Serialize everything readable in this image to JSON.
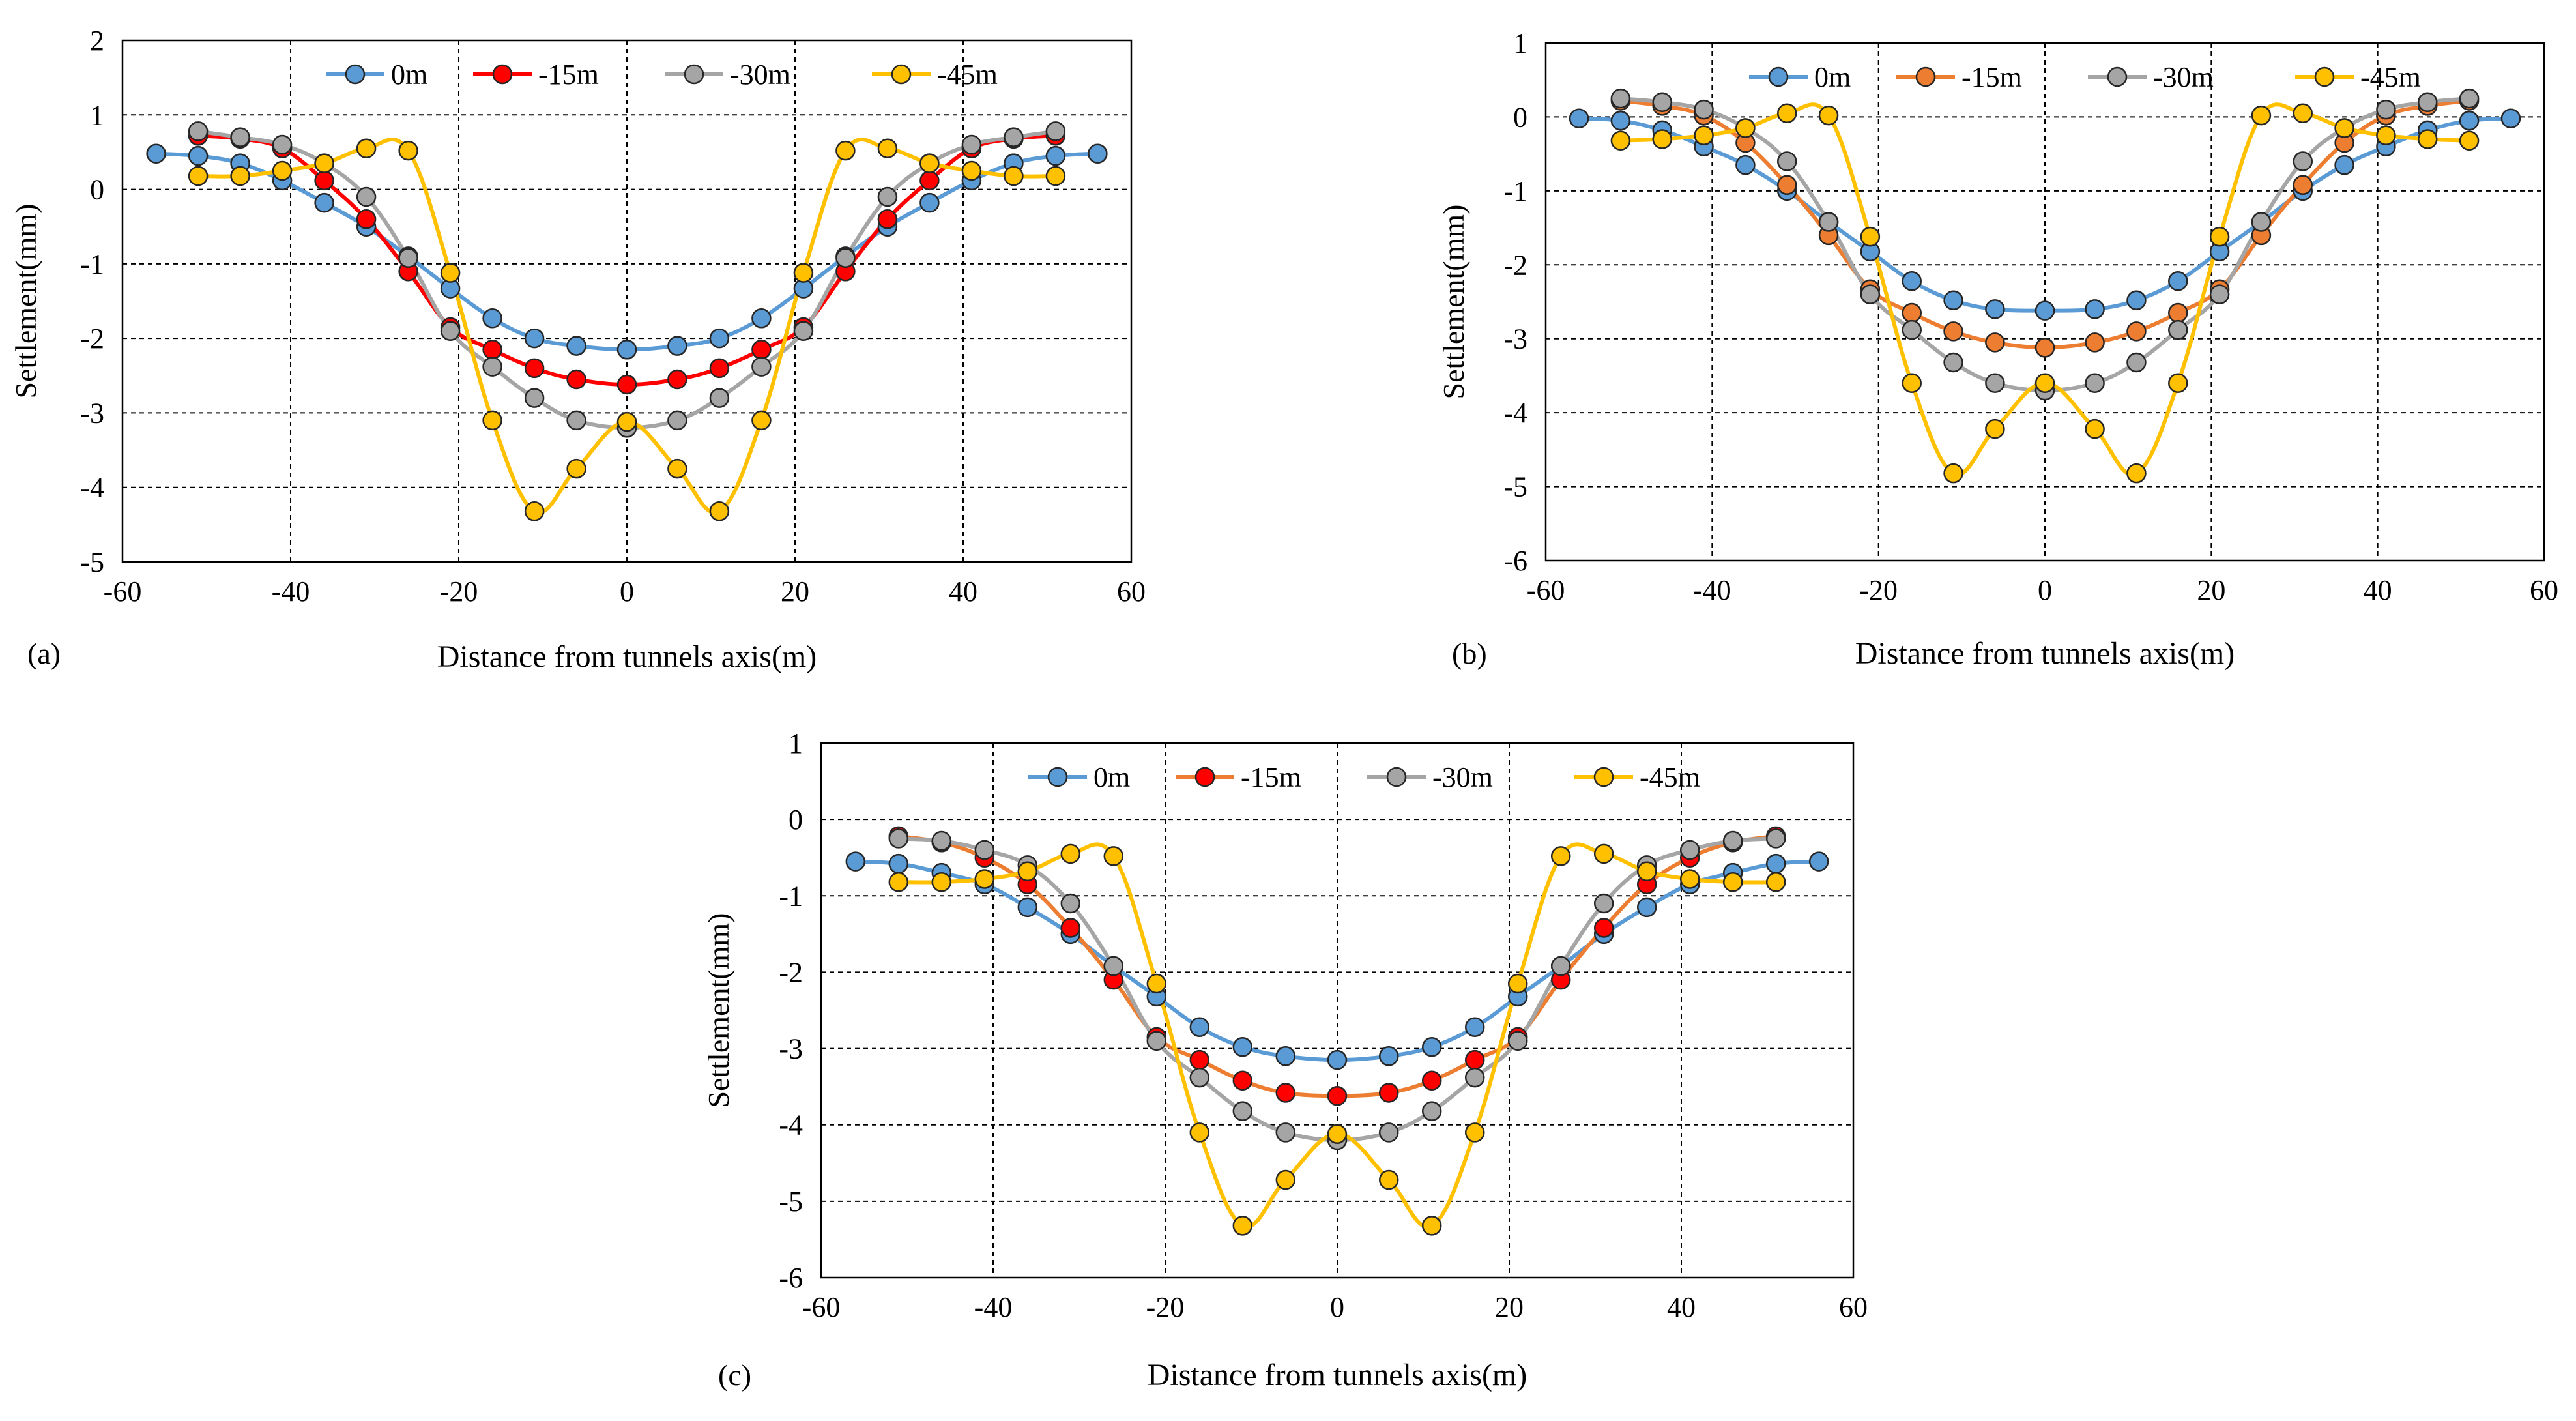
{
  "figure": {
    "xlabel": "Distance from tunnels axis(m)",
    "ylabel": "Settlement(mm)",
    "legend": [
      "0m",
      "-15m",
      "-30m",
      "-45m"
    ]
  },
  "chart_data": [
    {
      "type": "line",
      "panel_label": "(a)",
      "xlabel": "Distance from tunnels axis(m)",
      "ylabel": "Settlement(mm)",
      "xlim": [
        -60,
        60
      ],
      "ylim": [
        -5,
        2
      ],
      "xticks": [
        -60,
        -40,
        -20,
        0,
        20,
        40,
        60
      ],
      "yticks": [
        -5,
        -4,
        -3,
        -2,
        -1,
        0,
        1,
        2
      ],
      "grid": true,
      "legend_position": "top-center",
      "series": [
        {
          "name": "0m",
          "color": "#5B9BD5",
          "line_color": "#5B9BD5",
          "x": [
            -56,
            -51,
            -46,
            -41,
            -36,
            -31,
            -26,
            -21,
            -16,
            -11,
            -6,
            0,
            6,
            11,
            16,
            21,
            26,
            31,
            36,
            41,
            46,
            51,
            56
          ],
          "y": [
            0.48,
            0.45,
            0.35,
            0.12,
            -0.18,
            -0.5,
            -0.9,
            -1.33,
            -1.73,
            -2.0,
            -2.1,
            -2.15,
            -2.1,
            -2.0,
            -1.73,
            -1.33,
            -0.9,
            -0.5,
            -0.18,
            0.12,
            0.35,
            0.45,
            0.48
          ]
        },
        {
          "name": "-15m",
          "color": "#FF0000",
          "line_color": "#FF0000",
          "x": [
            -51,
            -46,
            -41,
            -36,
            -31,
            -26,
            -21,
            -16,
            -11,
            -6,
            0,
            6,
            11,
            16,
            21,
            26,
            31,
            36,
            41,
            46,
            51
          ],
          "y": [
            0.72,
            0.68,
            0.55,
            0.12,
            -0.4,
            -1.1,
            -1.85,
            -2.15,
            -2.4,
            -2.55,
            -2.62,
            -2.55,
            -2.4,
            -2.15,
            -1.85,
            -1.1,
            -0.4,
            0.12,
            0.55,
            0.68,
            0.72
          ]
        },
        {
          "name": "-30m",
          "color": "#A5A5A5",
          "line_color": "#A5A5A5",
          "x": [
            -51,
            -46,
            -41,
            -36,
            -31,
            -26,
            -21,
            -16,
            -11,
            -6,
            0,
            6,
            11,
            16,
            21,
            26,
            31,
            36,
            41,
            46,
            51
          ],
          "y": [
            0.78,
            0.7,
            0.6,
            0.35,
            -0.1,
            -0.92,
            -1.9,
            -2.38,
            -2.8,
            -3.1,
            -3.2,
            -3.1,
            -2.8,
            -2.38,
            -1.9,
            -0.92,
            -0.1,
            0.35,
            0.6,
            0.7,
            0.78
          ]
        },
        {
          "name": "-45m",
          "color": "#FFC000",
          "line_color": "#FFC000",
          "x": [
            -51,
            -46,
            -41,
            -36,
            -31,
            -26,
            -21,
            -16,
            -11,
            -6,
            0,
            6,
            11,
            16,
            21,
            26,
            31,
            36,
            41,
            46,
            51
          ],
          "y": [
            0.18,
            0.18,
            0.25,
            0.35,
            0.55,
            0.52,
            -1.12,
            -3.1,
            -4.32,
            -3.75,
            -3.12,
            -3.75,
            -4.32,
            -3.1,
            -1.12,
            0.52,
            0.55,
            0.35,
            0.25,
            0.18,
            0.18
          ]
        }
      ]
    },
    {
      "type": "line",
      "panel_label": "(b)",
      "xlabel": "Distance from tunnels axis(m)",
      "ylabel": "Settlement(mm)",
      "xlim": [
        -60,
        60
      ],
      "ylim": [
        -6,
        1
      ],
      "xticks": [
        -60,
        -40,
        -20,
        0,
        20,
        40,
        60
      ],
      "yticks": [
        -6,
        -5,
        -4,
        -3,
        -2,
        -1,
        0,
        1
      ],
      "grid": true,
      "legend_position": "top-center",
      "series": [
        {
          "name": "0m",
          "color": "#5B9BD5",
          "line_color": "#5B9BD5",
          "x": [
            -56,
            -51,
            -46,
            -41,
            -36,
            -31,
            -26,
            -21,
            -16,
            -11,
            -6,
            0,
            6,
            11,
            16,
            21,
            26,
            31,
            36,
            41,
            46,
            51,
            56
          ],
          "y": [
            -0.02,
            -0.05,
            -0.18,
            -0.4,
            -0.65,
            -1.0,
            -1.42,
            -1.82,
            -2.22,
            -2.48,
            -2.6,
            -2.62,
            -2.6,
            -2.48,
            -2.22,
            -1.82,
            -1.42,
            -1.0,
            -0.65,
            -0.4,
            -0.18,
            -0.05,
            -0.02
          ]
        },
        {
          "name": "-15m",
          "color": "#ED7D31",
          "line_color": "#ED7D31",
          "x": [
            -51,
            -46,
            -41,
            -36,
            -31,
            -26,
            -21,
            -16,
            -11,
            -6,
            0,
            6,
            11,
            16,
            21,
            26,
            31,
            36,
            41,
            46,
            51
          ],
          "y": [
            0.22,
            0.15,
            0.02,
            -0.35,
            -0.92,
            -1.6,
            -2.33,
            -2.65,
            -2.9,
            -3.05,
            -3.12,
            -3.05,
            -2.9,
            -2.65,
            -2.33,
            -1.6,
            -0.92,
            -0.35,
            0.02,
            0.15,
            0.22
          ]
        },
        {
          "name": "-30m",
          "color": "#A5A5A5",
          "line_color": "#A5A5A5",
          "x": [
            -51,
            -46,
            -41,
            -36,
            -31,
            -26,
            -21,
            -16,
            -11,
            -6,
            0,
            6,
            11,
            16,
            21,
            26,
            31,
            36,
            41,
            46,
            51
          ],
          "y": [
            0.25,
            0.2,
            0.1,
            -0.15,
            -0.6,
            -1.42,
            -2.4,
            -2.88,
            -3.32,
            -3.6,
            -3.7,
            -3.6,
            -3.32,
            -2.88,
            -2.4,
            -1.42,
            -0.6,
            -0.15,
            0.1,
            0.2,
            0.25
          ]
        },
        {
          "name": "-45m",
          "color": "#FFC000",
          "line_color": "#FFC000",
          "x": [
            -51,
            -46,
            -41,
            -36,
            -31,
            -26,
            -21,
            -16,
            -11,
            -6,
            0,
            6,
            11,
            16,
            21,
            26,
            31,
            36,
            41,
            46,
            51
          ],
          "y": [
            -0.32,
            -0.3,
            -0.25,
            -0.15,
            0.05,
            0.02,
            -1.62,
            -3.6,
            -4.82,
            -4.22,
            -3.6,
            -4.22,
            -4.82,
            -3.6,
            -1.62,
            0.02,
            0.05,
            -0.15,
            -0.25,
            -0.3,
            -0.32
          ]
        }
      ]
    },
    {
      "type": "line",
      "panel_label": "(c)",
      "xlabel": "Distance from tunnels axis(m)",
      "ylabel": "Settlement(mm)",
      "xlim": [
        -60,
        60
      ],
      "ylim": [
        -6,
        1
      ],
      "xticks": [
        -60,
        -40,
        -20,
        0,
        20,
        40,
        60
      ],
      "yticks": [
        -6,
        -5,
        -4,
        -3,
        -2,
        -1,
        0,
        1
      ],
      "grid": true,
      "legend_position": "top-center",
      "series": [
        {
          "name": "0m",
          "color": "#5B9BD5",
          "line_color": "#5B9BD5",
          "x": [
            -56,
            -51,
            -46,
            -41,
            -36,
            -31,
            -26,
            -21,
            -16,
            -11,
            -6,
            0,
            6,
            11,
            16,
            21,
            26,
            31,
            36,
            41,
            46,
            51,
            56
          ],
          "y": [
            -0.55,
            -0.58,
            -0.7,
            -0.85,
            -1.15,
            -1.5,
            -1.92,
            -2.32,
            -2.72,
            -2.98,
            -3.1,
            -3.15,
            -3.1,
            -2.98,
            -2.72,
            -2.32,
            -1.92,
            -1.5,
            -1.15,
            -0.85,
            -0.7,
            -0.58,
            -0.55
          ]
        },
        {
          "name": "-15m",
          "color": "#FF0000",
          "line_color": "#ED7D31",
          "x": [
            -51,
            -46,
            -41,
            -36,
            -31,
            -26,
            -21,
            -16,
            -11,
            -6,
            0,
            6,
            11,
            16,
            21,
            26,
            31,
            36,
            41,
            46,
            51
          ],
          "y": [
            -0.22,
            -0.3,
            -0.5,
            -0.85,
            -1.42,
            -2.1,
            -2.85,
            -3.15,
            -3.42,
            -3.58,
            -3.62,
            -3.58,
            -3.42,
            -3.15,
            -2.85,
            -2.1,
            -1.42,
            -0.85,
            -0.5,
            -0.3,
            -0.22
          ]
        },
        {
          "name": "-30m",
          "color": "#A5A5A5",
          "line_color": "#A5A5A5",
          "x": [
            -51,
            -46,
            -41,
            -36,
            -31,
            -26,
            -21,
            -16,
            -11,
            -6,
            0,
            6,
            11,
            16,
            21,
            26,
            31,
            36,
            41,
            46,
            51
          ],
          "y": [
            -0.25,
            -0.28,
            -0.4,
            -0.6,
            -1.1,
            -1.92,
            -2.9,
            -3.38,
            -3.82,
            -4.1,
            -4.2,
            -4.1,
            -3.82,
            -3.38,
            -2.9,
            -1.92,
            -1.1,
            -0.6,
            -0.4,
            -0.28,
            -0.25
          ]
        },
        {
          "name": "-45m",
          "color": "#FFC000",
          "line_color": "#FFC000",
          "x": [
            -51,
            -46,
            -41,
            -36,
            -31,
            -26,
            -21,
            -16,
            -11,
            -6,
            0,
            6,
            11,
            16,
            21,
            26,
            31,
            36,
            41,
            46,
            51
          ],
          "y": [
            -0.82,
            -0.82,
            -0.78,
            -0.68,
            -0.45,
            -0.48,
            -2.15,
            -4.1,
            -5.32,
            -4.72,
            -4.12,
            -4.72,
            -5.32,
            -4.1,
            -2.15,
            -0.48,
            -0.45,
            -0.68,
            -0.78,
            -0.82,
            -0.82
          ]
        }
      ]
    }
  ]
}
